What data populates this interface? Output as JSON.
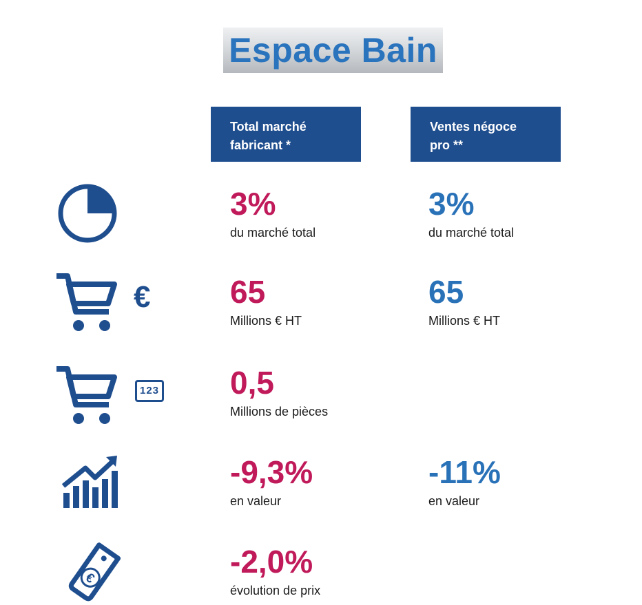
{
  "title": "Espace Bain",
  "columns": [
    {
      "lines": [
        "Total marché",
        "fabricant *"
      ]
    },
    {
      "lines": [
        "Ventes négoce",
        "pro **"
      ]
    }
  ],
  "rows": [
    {
      "icon": "pie-chart-icon",
      "col1": {
        "value": "3%",
        "label": "du marché total"
      },
      "col2": {
        "value": "3%",
        "label": "du marché total"
      }
    },
    {
      "icon": "shopping-cart-euro-icon",
      "col1": {
        "value": "65",
        "label": "Millions € HT"
      },
      "col2": {
        "value": "65",
        "label": "Millions € HT"
      }
    },
    {
      "icon": "shopping-cart-123-icon",
      "col1": {
        "value": "0,5",
        "label": "Millions de pièces"
      }
    },
    {
      "icon": "growth-chart-icon",
      "col1": {
        "value": "-9,3%",
        "label": "en valeur"
      },
      "col2": {
        "value": "-11%",
        "label": "en valeur"
      }
    },
    {
      "icon": "euro-price-tag-icon",
      "col1": {
        "value": "-2,0%",
        "label": "évolution de prix"
      }
    }
  ],
  "icon_glyphs": {
    "euro": "€",
    "count": "123"
  },
  "colors": {
    "header_bg": "#1f4e8f",
    "col1_value": "#c01a5a",
    "col2_value": "#2a72b8",
    "icon": "#1f4e8f",
    "title": "#2a73bd"
  }
}
